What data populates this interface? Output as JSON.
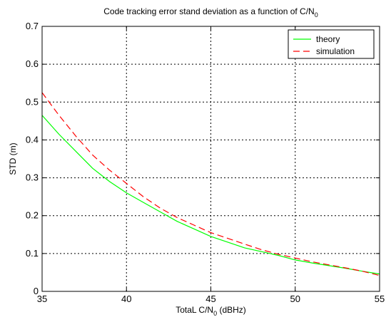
{
  "chart_data": {
    "type": "line",
    "title": {
      "prefix": "Code tracking error stand deviation as a function of C/N",
      "subscript": "0"
    },
    "xlabel": {
      "prefix": "TotaL C/N",
      "subscript": "0",
      "suffix": " (dBHz)"
    },
    "ylabel": "STD (m)",
    "xlim": [
      35,
      55
    ],
    "ylim": [
      0,
      0.7
    ],
    "xticks": [
      "35",
      "40",
      "45",
      "50",
      "55"
    ],
    "yticks": [
      "0",
      "0.1",
      "0.2",
      "0.3",
      "0.4",
      "0.5",
      "0.6",
      "0.7"
    ],
    "grid": true,
    "legend_position": "top-right",
    "series": [
      {
        "name": "theory",
        "color": "#00ff00",
        "style": "solid",
        "x": [
          35,
          36,
          37,
          38,
          39,
          40,
          41,
          42,
          43,
          44,
          45,
          46,
          47,
          48,
          49,
          50,
          51,
          52,
          53,
          54,
          55
        ],
        "y": [
          0.465,
          0.415,
          0.37,
          0.325,
          0.29,
          0.26,
          0.235,
          0.21,
          0.185,
          0.165,
          0.145,
          0.13,
          0.115,
          0.105,
          0.095,
          0.083,
          0.075,
          0.068,
          0.061,
          0.053,
          0.046
        ]
      },
      {
        "name": "simulation",
        "color": "#ff0000",
        "style": "dashed",
        "x": [
          35,
          36,
          37,
          38,
          39,
          40,
          41,
          42,
          43,
          44,
          45,
          46,
          47,
          48,
          49,
          50,
          51,
          52,
          53,
          54,
          55
        ],
        "y": [
          0.525,
          0.465,
          0.41,
          0.36,
          0.32,
          0.285,
          0.25,
          0.22,
          0.195,
          0.175,
          0.155,
          0.14,
          0.125,
          0.11,
          0.098,
          0.088,
          0.078,
          0.07,
          0.062,
          0.053,
          0.042
        ]
      }
    ]
  }
}
